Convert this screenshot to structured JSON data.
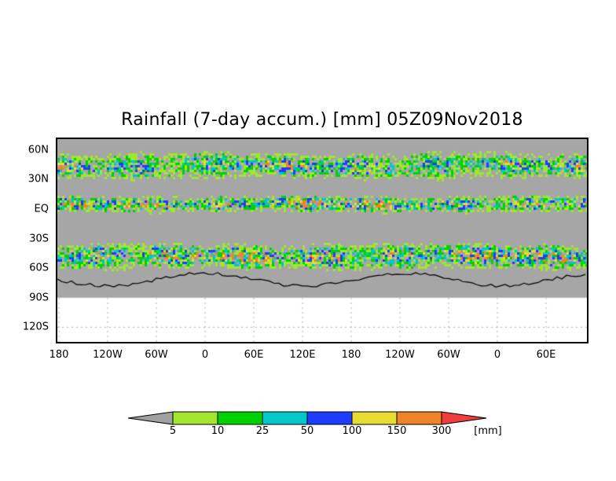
{
  "title": "Rainfall (7-day accum.) [mm] 05Z09Nov2018",
  "y_axis": {
    "ticks": [
      {
        "label": "60N",
        "lat": 60
      },
      {
        "label": "30N",
        "lat": 30
      },
      {
        "label": "EQ",
        "lat": 0
      },
      {
        "label": "30S",
        "lat": -30
      },
      {
        "label": "60S",
        "lat": -60
      },
      {
        "label": "90S",
        "lat": -90
      },
      {
        "label": "120S",
        "lat": -120
      }
    ]
  },
  "x_axis": {
    "ticks": [
      {
        "label": "180",
        "lon": 180
      },
      {
        "label": "120W",
        "lon": 240
      },
      {
        "label": "60W",
        "lon": 300
      },
      {
        "label": "0",
        "lon": 360
      },
      {
        "label": "60E",
        "lon": 420
      },
      {
        "label": "120E",
        "lon": 480
      },
      {
        "label": "180",
        "lon": 540
      },
      {
        "label": "120W",
        "lon": 600
      },
      {
        "label": "60W",
        "lon": 660
      },
      {
        "label": "0",
        "lon": 720
      },
      {
        "label": "60E",
        "lon": 780
      }
    ]
  },
  "colorbar": {
    "unit": "[mm]",
    "below_color": "#a0a0a0",
    "above_color": "#f03c3c",
    "levels": [
      "5",
      "10",
      "25",
      "50",
      "100",
      "150",
      "300"
    ],
    "colors": [
      "#a0e632",
      "#00d200",
      "#00c8c8",
      "#1e3cff",
      "#e6dc32",
      "#f08228"
    ]
  },
  "map": {
    "missing_color": "#a6a6a6"
  }
}
